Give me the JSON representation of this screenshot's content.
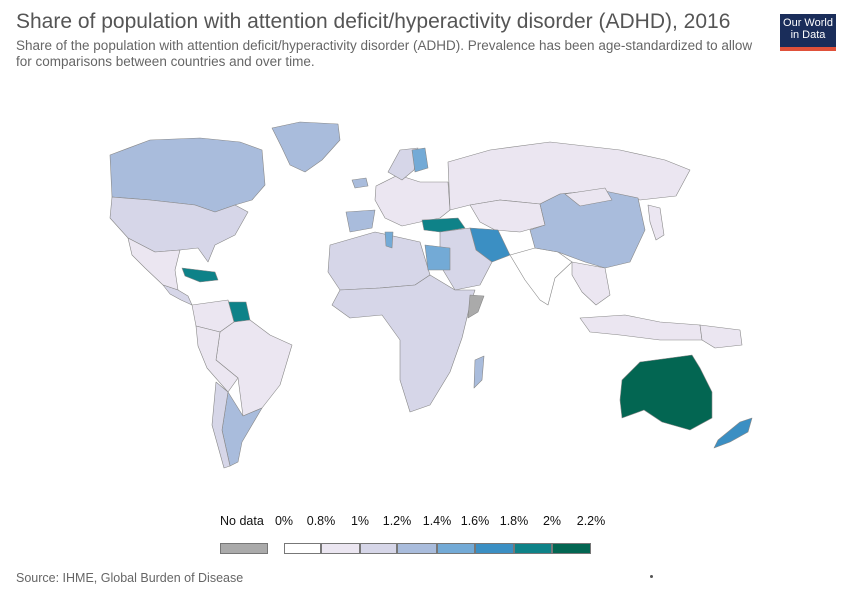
{
  "title": "Share of population with attention deficit/hyperactivity disorder (ADHD), 2016",
  "subtitle": "Share of the population with attention deficit/hyperactivity disorder (ADHD). Prevalence has been age-standardized to allow for comparisons between countries and over time.",
  "logo": {
    "line1": "Our World",
    "line2": "in Data"
  },
  "source": "Source: IHME, Global Burden of Disease",
  "colors": {
    "no_data": "#aaaaaa",
    "scale": [
      "#ffffff",
      "#ebe6f1",
      "#d6d6e8",
      "#a9bcdc",
      "#73aad6",
      "#3b8fc3",
      "#0e8288",
      "#036652"
    ],
    "border": "#888888"
  },
  "legend": {
    "no_data_label": "No data",
    "ticks": [
      "0%",
      "0.8%",
      "1%",
      "1.2%",
      "1.4%",
      "1.6%",
      "1.8%",
      "2%",
      "2.2%"
    ]
  },
  "regions": [
    {
      "name": "Greenland",
      "bin": 3
    },
    {
      "name": "Canada",
      "bin": 3
    },
    {
      "name": "United States",
      "bin": 2
    },
    {
      "name": "Mexico",
      "bin": 1
    },
    {
      "name": "Central America",
      "bin": 2
    },
    {
      "name": "Caribbean",
      "bin": 6
    },
    {
      "name": "Guianas",
      "bin": 6
    },
    {
      "name": "Colombia / Venezuela",
      "bin": 1
    },
    {
      "name": "Brazil",
      "bin": 1
    },
    {
      "name": "Peru / Bolivia",
      "bin": 1
    },
    {
      "name": "Argentina",
      "bin": 3
    },
    {
      "name": "Chile",
      "bin": 2
    },
    {
      "name": "Iceland",
      "bin": 3
    },
    {
      "name": "Europe",
      "bin": 1
    },
    {
      "name": "Scandinavia",
      "bin": 2
    },
    {
      "name": "Finland",
      "bin": 4
    },
    {
      "name": "Spain / Portugal",
      "bin": 3
    },
    {
      "name": "Russia",
      "bin": 1
    },
    {
      "name": "Central Asia",
      "bin": 1
    },
    {
      "name": "Turkey",
      "bin": 6
    },
    {
      "name": "Iran",
      "bin": 5
    },
    {
      "name": "Middle East",
      "bin": 2
    },
    {
      "name": "North Africa",
      "bin": 2
    },
    {
      "name": "Tunisia",
      "bin": 4
    },
    {
      "name": "Egypt",
      "bin": 4
    },
    {
      "name": "Sub-Saharan Africa",
      "bin": 2
    },
    {
      "name": "Somalia",
      "bin": -1
    },
    {
      "name": "Madagascar",
      "bin": 3
    },
    {
      "name": "India",
      "bin": 0
    },
    {
      "name": "China",
      "bin": 3
    },
    {
      "name": "Mongolia",
      "bin": 1
    },
    {
      "name": "Southeast Asia",
      "bin": 1
    },
    {
      "name": "Japan",
      "bin": 1
    },
    {
      "name": "Indonesia",
      "bin": 1
    },
    {
      "name": "Papua New Guinea",
      "bin": 1
    },
    {
      "name": "Australia",
      "bin": 7
    },
    {
      "name": "New Zealand",
      "bin": 5
    }
  ]
}
